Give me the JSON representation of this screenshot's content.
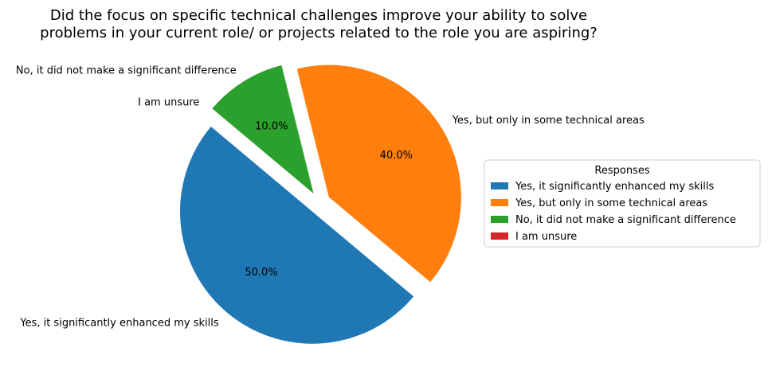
{
  "chart_data": {
    "type": "pie",
    "title_lines": [
      "Did the focus on specific technical challenges improve your ability to solve",
      "problems in your current role/ or projects related to the role you are aspiring?"
    ],
    "categories": [
      "Yes, it significantly enhanced my skills",
      "Yes, but only in some technical areas",
      "No, it did not make a significant difference",
      "I am unsure"
    ],
    "values": [
      50.0,
      40.0,
      10.0,
      0.0
    ],
    "percent_labels": [
      "50.0%",
      "40.0%",
      "10.0%",
      ""
    ],
    "colors": [
      "#1f77b4",
      "#ff7f0e",
      "#2ca02c",
      "#d62728"
    ],
    "exploded": true,
    "start_angle_deg": 140,
    "legend": {
      "title": "Responses",
      "placement": "center-right"
    }
  }
}
